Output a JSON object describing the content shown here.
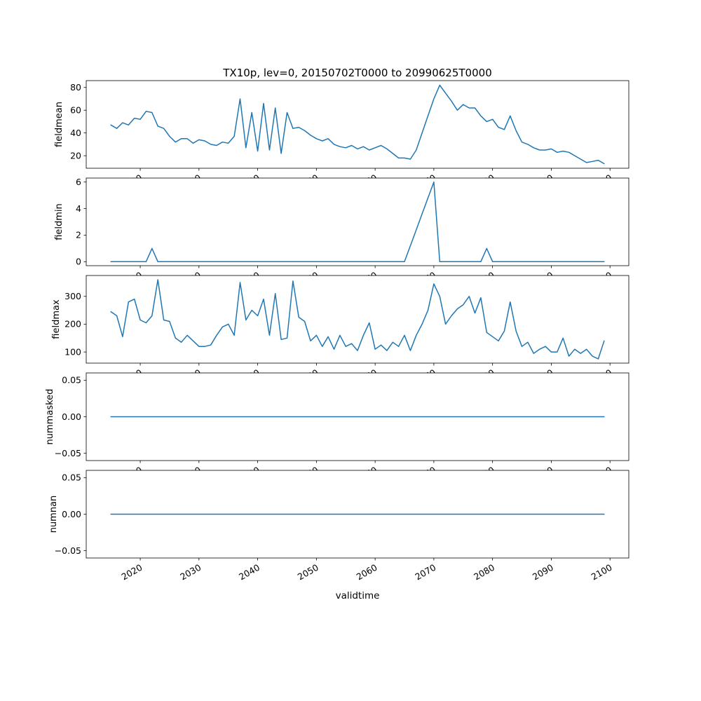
{
  "chart_data": {
    "type": "line",
    "title": "TX10p, lev=0, 20150702T0000 to 20990625T0000",
    "xlabel": "validtime",
    "line_color": "#1f77b4",
    "xlim": [
      2010.8,
      2103.2
    ],
    "xticks": [
      2020,
      2030,
      2040,
      2050,
      2060,
      2070,
      2080,
      2090,
      2100
    ],
    "xtick_labels": [
      "2020",
      "2030",
      "2040",
      "2050",
      "2060",
      "2070",
      "2080",
      "2090",
      "2100"
    ],
    "x": [
      2015,
      2016,
      2017,
      2018,
      2019,
      2020,
      2021,
      2022,
      2023,
      2024,
      2025,
      2026,
      2027,
      2028,
      2029,
      2030,
      2031,
      2032,
      2033,
      2034,
      2035,
      2036,
      2037,
      2038,
      2039,
      2040,
      2041,
      2042,
      2043,
      2044,
      2045,
      2046,
      2047,
      2048,
      2049,
      2050,
      2051,
      2052,
      2053,
      2054,
      2055,
      2056,
      2057,
      2058,
      2059,
      2060,
      2061,
      2062,
      2063,
      2064,
      2065,
      2066,
      2067,
      2068,
      2069,
      2070,
      2071,
      2072,
      2073,
      2074,
      2075,
      2076,
      2077,
      2078,
      2079,
      2080,
      2081,
      2082,
      2083,
      2084,
      2085,
      2086,
      2087,
      2088,
      2089,
      2090,
      2091,
      2092,
      2093,
      2094,
      2095,
      2096,
      2097,
      2098,
      2099
    ],
    "subplots": [
      {
        "ylabel": "fieldmean",
        "ylim": [
          9,
          86
        ],
        "yticks": [
          20,
          40,
          60,
          80
        ],
        "ytick_labels": [
          "20",
          "40",
          "60",
          "80"
        ],
        "values": [
          47,
          44,
          49,
          47,
          53,
          52,
          59,
          58,
          46,
          44,
          37,
          32,
          35,
          35,
          31,
          34,
          33,
          30,
          29,
          32,
          31,
          37,
          70,
          27,
          58,
          24,
          66,
          25,
          62,
          22,
          58,
          44,
          45,
          42,
          38,
          35,
          33,
          35,
          30,
          28,
          27,
          29,
          26,
          28,
          25,
          27,
          29,
          26,
          22,
          18,
          18,
          17,
          25,
          40,
          55,
          70,
          82,
          75,
          68,
          60,
          65,
          62,
          62,
          55,
          50,
          52,
          45,
          43,
          55,
          42,
          32,
          30,
          27,
          25,
          25,
          26,
          23,
          24,
          23,
          20,
          17,
          14,
          15,
          16,
          13
        ]
      },
      {
        "ylabel": "fieldmin",
        "ylim": [
          -0.3,
          6.3
        ],
        "yticks": [
          0,
          2,
          4,
          6
        ],
        "ytick_labels": [
          "0",
          "2",
          "4",
          "6"
        ],
        "values": [
          0,
          0,
          0,
          0,
          0,
          0,
          0,
          1,
          0,
          0,
          0,
          0,
          0,
          0,
          0,
          0,
          0,
          0,
          0,
          0,
          0,
          0,
          0,
          0,
          0,
          0,
          0,
          0,
          0,
          0,
          0,
          0,
          0,
          0,
          0,
          0,
          0,
          0,
          0,
          0,
          0,
          0,
          0,
          0,
          0,
          0,
          0,
          0,
          0,
          0,
          0,
          1.2,
          2.4,
          3.6,
          4.8,
          6,
          0,
          0,
          0,
          0,
          0,
          0,
          0,
          0,
          1,
          0,
          0,
          0,
          0,
          0,
          0,
          0,
          0,
          0,
          0,
          0,
          0,
          0,
          0,
          0,
          0,
          0,
          0,
          0,
          0
        ]
      },
      {
        "ylabel": "fieldmax",
        "ylim": [
          60,
          375
        ],
        "yticks": [
          100,
          200,
          300
        ],
        "ytick_labels": [
          "100",
          "200",
          "300"
        ],
        "values": [
          245,
          230,
          155,
          280,
          290,
          215,
          205,
          230,
          360,
          215,
          210,
          150,
          135,
          160,
          140,
          120,
          120,
          125,
          160,
          190,
          200,
          160,
          350,
          215,
          250,
          230,
          290,
          160,
          310,
          145,
          150,
          355,
          225,
          210,
          140,
          160,
          120,
          155,
          110,
          160,
          120,
          130,
          105,
          160,
          205,
          110,
          125,
          105,
          135,
          120,
          160,
          105,
          160,
          200,
          250,
          345,
          300,
          200,
          230,
          255,
          270,
          300,
          240,
          295,
          170,
          155,
          140,
          175,
          280,
          175,
          120,
          135,
          95,
          110,
          120,
          100,
          100,
          150,
          85,
          110,
          95,
          110,
          85,
          75,
          140
        ]
      },
      {
        "ylabel": "nummasked",
        "ylim": [
          -0.06,
          0.06
        ],
        "yticks": [
          -0.05,
          0,
          0.05
        ],
        "ytick_labels": [
          "−0.05",
          "0.00",
          "0.05"
        ],
        "values": [
          0,
          0,
          0,
          0,
          0,
          0,
          0,
          0,
          0,
          0,
          0,
          0,
          0,
          0,
          0,
          0,
          0,
          0,
          0,
          0,
          0,
          0,
          0,
          0,
          0,
          0,
          0,
          0,
          0,
          0,
          0,
          0,
          0,
          0,
          0,
          0,
          0,
          0,
          0,
          0,
          0,
          0,
          0,
          0,
          0,
          0,
          0,
          0,
          0,
          0,
          0,
          0,
          0,
          0,
          0,
          0,
          0,
          0,
          0,
          0,
          0,
          0,
          0,
          0,
          0,
          0,
          0,
          0,
          0,
          0,
          0,
          0,
          0,
          0,
          0,
          0,
          0,
          0,
          0,
          0,
          0,
          0,
          0,
          0,
          0
        ]
      },
      {
        "ylabel": "numnan",
        "ylim": [
          -0.06,
          0.06
        ],
        "yticks": [
          -0.05,
          0,
          0.05
        ],
        "ytick_labels": [
          "−0.05",
          "0.00",
          "0.05"
        ],
        "values": [
          0,
          0,
          0,
          0,
          0,
          0,
          0,
          0,
          0,
          0,
          0,
          0,
          0,
          0,
          0,
          0,
          0,
          0,
          0,
          0,
          0,
          0,
          0,
          0,
          0,
          0,
          0,
          0,
          0,
          0,
          0,
          0,
          0,
          0,
          0,
          0,
          0,
          0,
          0,
          0,
          0,
          0,
          0,
          0,
          0,
          0,
          0,
          0,
          0,
          0,
          0,
          0,
          0,
          0,
          0,
          0,
          0,
          0,
          0,
          0,
          0,
          0,
          0,
          0,
          0,
          0,
          0,
          0,
          0,
          0,
          0,
          0,
          0,
          0,
          0,
          0,
          0,
          0,
          0,
          0,
          0,
          0,
          0,
          0,
          0
        ]
      }
    ]
  }
}
